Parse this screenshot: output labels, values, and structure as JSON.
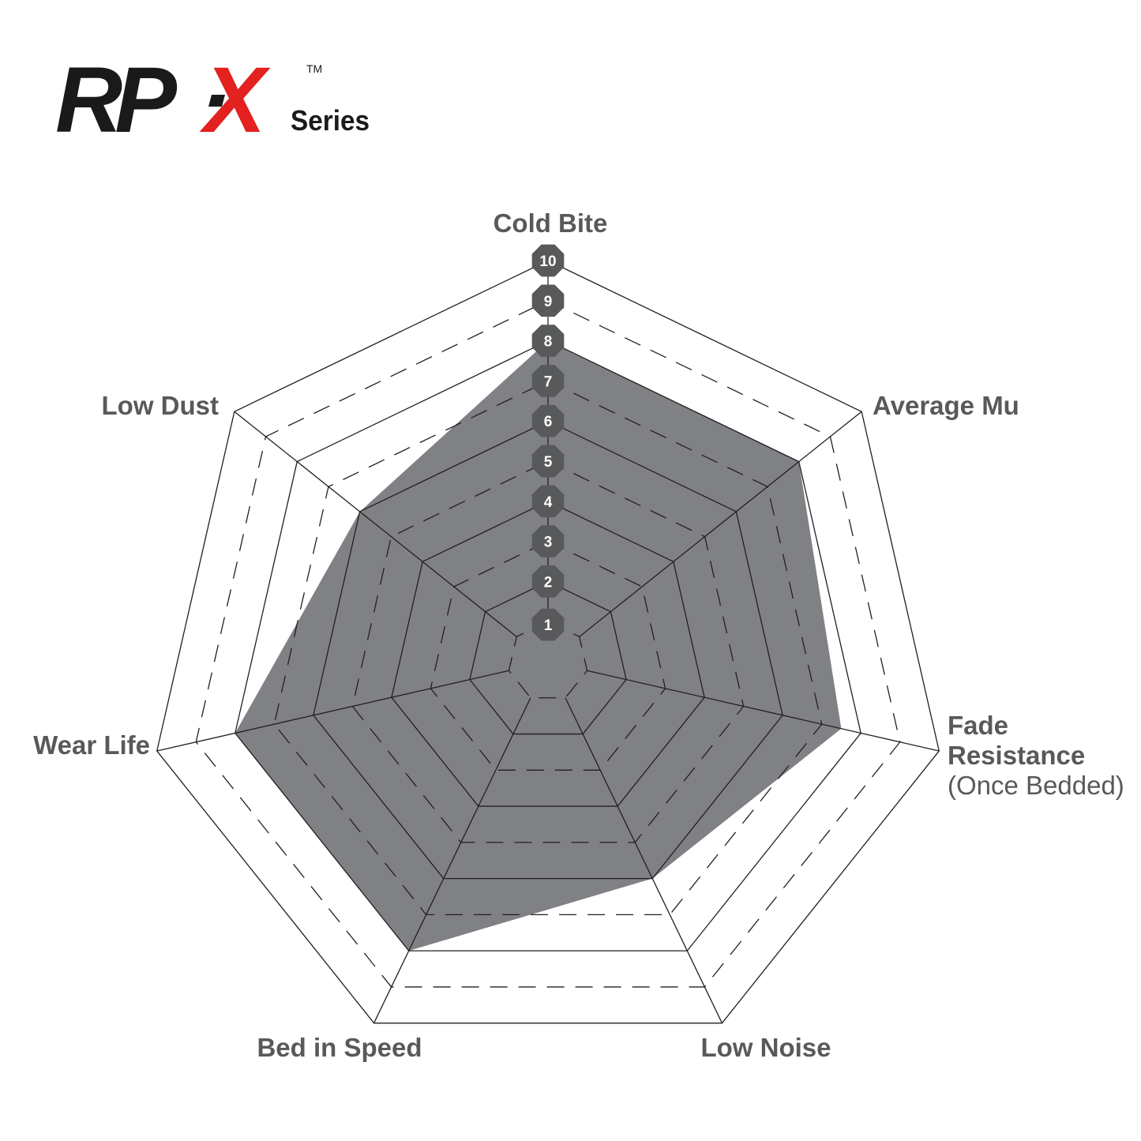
{
  "logo": {
    "text_main": "RP",
    "text_x": "X",
    "text_series": "Series",
    "trademark": "TM",
    "colors": {
      "black": "#1a1a1a",
      "red": "#e3211f"
    }
  },
  "chart_data": {
    "type": "radar",
    "axes": [
      {
        "label": "Cold Bite"
      },
      {
        "label": "Average Mu"
      },
      {
        "label": "Fade",
        "label2": "Resistance",
        "label3": "(Once Bedded)"
      },
      {
        "label": "Low Noise"
      },
      {
        "label": "Bed in Speed"
      },
      {
        "label": "Wear Life"
      },
      {
        "label": "Low Dust"
      }
    ],
    "values": [
      8,
      8,
      7.5,
      6,
      8,
      8,
      6
    ],
    "range": [
      0,
      10
    ],
    "tick_labels": [
      "1",
      "2",
      "3",
      "4",
      "5",
      "6",
      "7",
      "8",
      "9",
      "10"
    ],
    "grid": "solid on even levels, dashed on odd levels",
    "colors": {
      "fill": "#808185",
      "badge": "#58595b",
      "label": "#58595b",
      "grid": "#231f20"
    }
  }
}
